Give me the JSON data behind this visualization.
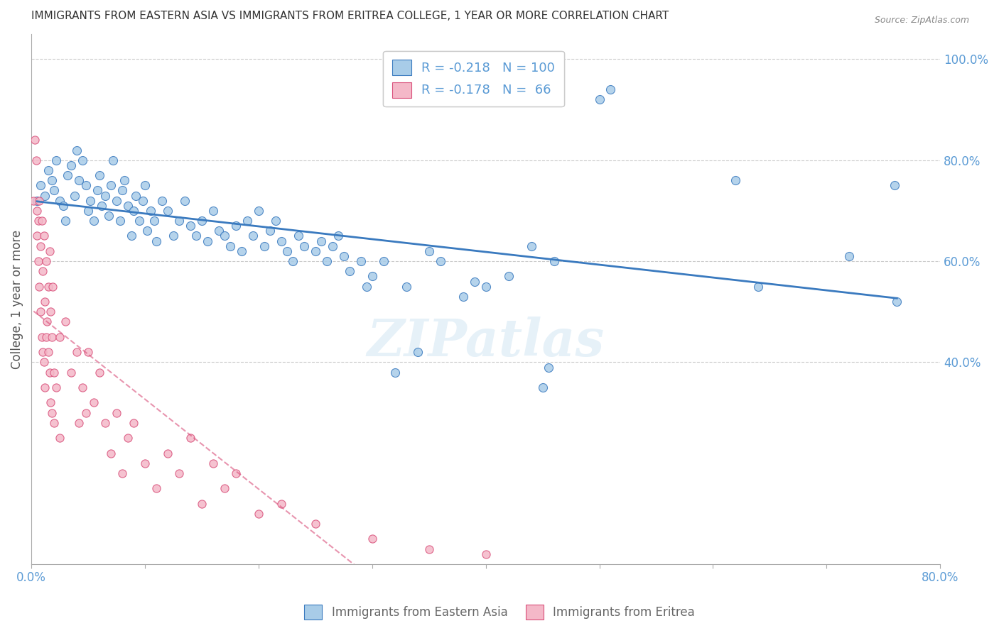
{
  "title": "IMMIGRANTS FROM EASTERN ASIA VS IMMIGRANTS FROM ERITREA COLLEGE, 1 YEAR OR MORE CORRELATION CHART",
  "source": "Source: ZipAtlas.com",
  "xlabel": "",
  "ylabel": "College, 1 year or more",
  "xlim": [
    0.0,
    0.8
  ],
  "ylim": [
    0.0,
    1.05
  ],
  "xticks": [
    0.0,
    0.1,
    0.2,
    0.3,
    0.4,
    0.5,
    0.6,
    0.7,
    0.8
  ],
  "xticklabels": [
    "0.0%",
    "",
    "",
    "",
    "",
    "",
    "",
    "",
    "80.0%"
  ],
  "yticks_right": [
    0.4,
    0.6,
    0.8,
    1.0
  ],
  "yticklabels_right": [
    "40.0%",
    "60.0%",
    "80.0%",
    "100.0%"
  ],
  "R_blue": -0.218,
  "N_blue": 100,
  "R_pink": -0.178,
  "N_pink": 66,
  "blue_color": "#a8cce8",
  "pink_color": "#f4b8c8",
  "blue_line_color": "#3a7abf",
  "pink_line_color": "#d94f7a",
  "axis_label_color": "#5b9bd5",
  "watermark": "ZIPatlas",
  "blue_scatter": [
    [
      0.005,
      0.72
    ],
    [
      0.008,
      0.75
    ],
    [
      0.012,
      0.73
    ],
    [
      0.015,
      0.78
    ],
    [
      0.018,
      0.76
    ],
    [
      0.02,
      0.74
    ],
    [
      0.022,
      0.8
    ],
    [
      0.025,
      0.72
    ],
    [
      0.028,
      0.71
    ],
    [
      0.03,
      0.68
    ],
    [
      0.032,
      0.77
    ],
    [
      0.035,
      0.79
    ],
    [
      0.038,
      0.73
    ],
    [
      0.04,
      0.82
    ],
    [
      0.042,
      0.76
    ],
    [
      0.045,
      0.8
    ],
    [
      0.048,
      0.75
    ],
    [
      0.05,
      0.7
    ],
    [
      0.052,
      0.72
    ],
    [
      0.055,
      0.68
    ],
    [
      0.058,
      0.74
    ],
    [
      0.06,
      0.77
    ],
    [
      0.062,
      0.71
    ],
    [
      0.065,
      0.73
    ],
    [
      0.068,
      0.69
    ],
    [
      0.07,
      0.75
    ],
    [
      0.072,
      0.8
    ],
    [
      0.075,
      0.72
    ],
    [
      0.078,
      0.68
    ],
    [
      0.08,
      0.74
    ],
    [
      0.082,
      0.76
    ],
    [
      0.085,
      0.71
    ],
    [
      0.088,
      0.65
    ],
    [
      0.09,
      0.7
    ],
    [
      0.092,
      0.73
    ],
    [
      0.095,
      0.68
    ],
    [
      0.098,
      0.72
    ],
    [
      0.1,
      0.75
    ],
    [
      0.102,
      0.66
    ],
    [
      0.105,
      0.7
    ],
    [
      0.108,
      0.68
    ],
    [
      0.11,
      0.64
    ],
    [
      0.115,
      0.72
    ],
    [
      0.12,
      0.7
    ],
    [
      0.125,
      0.65
    ],
    [
      0.13,
      0.68
    ],
    [
      0.135,
      0.72
    ],
    [
      0.14,
      0.67
    ],
    [
      0.145,
      0.65
    ],
    [
      0.15,
      0.68
    ],
    [
      0.155,
      0.64
    ],
    [
      0.16,
      0.7
    ],
    [
      0.165,
      0.66
    ],
    [
      0.17,
      0.65
    ],
    [
      0.175,
      0.63
    ],
    [
      0.18,
      0.67
    ],
    [
      0.185,
      0.62
    ],
    [
      0.19,
      0.68
    ],
    [
      0.195,
      0.65
    ],
    [
      0.2,
      0.7
    ],
    [
      0.205,
      0.63
    ],
    [
      0.21,
      0.66
    ],
    [
      0.215,
      0.68
    ],
    [
      0.22,
      0.64
    ],
    [
      0.225,
      0.62
    ],
    [
      0.23,
      0.6
    ],
    [
      0.235,
      0.65
    ],
    [
      0.24,
      0.63
    ],
    [
      0.25,
      0.62
    ],
    [
      0.255,
      0.64
    ],
    [
      0.26,
      0.6
    ],
    [
      0.265,
      0.63
    ],
    [
      0.27,
      0.65
    ],
    [
      0.275,
      0.61
    ],
    [
      0.28,
      0.58
    ],
    [
      0.29,
      0.6
    ],
    [
      0.295,
      0.55
    ],
    [
      0.3,
      0.57
    ],
    [
      0.31,
      0.6
    ],
    [
      0.32,
      0.38
    ],
    [
      0.33,
      0.55
    ],
    [
      0.34,
      0.42
    ],
    [
      0.35,
      0.62
    ],
    [
      0.36,
      0.6
    ],
    [
      0.38,
      0.53
    ],
    [
      0.39,
      0.56
    ],
    [
      0.4,
      0.55
    ],
    [
      0.42,
      0.57
    ],
    [
      0.44,
      0.63
    ],
    [
      0.45,
      0.35
    ],
    [
      0.455,
      0.39
    ],
    [
      0.46,
      0.6
    ],
    [
      0.5,
      0.92
    ],
    [
      0.51,
      0.94
    ],
    [
      0.62,
      0.76
    ],
    [
      0.64,
      0.55
    ],
    [
      0.72,
      0.61
    ],
    [
      0.76,
      0.75
    ],
    [
      0.762,
      0.52
    ]
  ],
  "pink_scatter": [
    [
      0.002,
      0.72
    ],
    [
      0.003,
      0.84
    ],
    [
      0.004,
      0.8
    ],
    [
      0.005,
      0.7
    ],
    [
      0.005,
      0.65
    ],
    [
      0.006,
      0.68
    ],
    [
      0.006,
      0.6
    ],
    [
      0.007,
      0.72
    ],
    [
      0.007,
      0.55
    ],
    [
      0.008,
      0.63
    ],
    [
      0.008,
      0.5
    ],
    [
      0.009,
      0.68
    ],
    [
      0.009,
      0.45
    ],
    [
      0.01,
      0.58
    ],
    [
      0.01,
      0.42
    ],
    [
      0.011,
      0.65
    ],
    [
      0.011,
      0.4
    ],
    [
      0.012,
      0.52
    ],
    [
      0.012,
      0.35
    ],
    [
      0.013,
      0.6
    ],
    [
      0.013,
      0.45
    ],
    [
      0.014,
      0.48
    ],
    [
      0.015,
      0.55
    ],
    [
      0.015,
      0.42
    ],
    [
      0.016,
      0.62
    ],
    [
      0.016,
      0.38
    ],
    [
      0.017,
      0.5
    ],
    [
      0.017,
      0.32
    ],
    [
      0.018,
      0.45
    ],
    [
      0.018,
      0.3
    ],
    [
      0.019,
      0.55
    ],
    [
      0.02,
      0.38
    ],
    [
      0.02,
      0.28
    ],
    [
      0.022,
      0.35
    ],
    [
      0.025,
      0.45
    ],
    [
      0.025,
      0.25
    ],
    [
      0.03,
      0.48
    ],
    [
      0.035,
      0.38
    ],
    [
      0.04,
      0.42
    ],
    [
      0.042,
      0.28
    ],
    [
      0.045,
      0.35
    ],
    [
      0.048,
      0.3
    ],
    [
      0.05,
      0.42
    ],
    [
      0.055,
      0.32
    ],
    [
      0.06,
      0.38
    ],
    [
      0.065,
      0.28
    ],
    [
      0.07,
      0.22
    ],
    [
      0.075,
      0.3
    ],
    [
      0.08,
      0.18
    ],
    [
      0.085,
      0.25
    ],
    [
      0.09,
      0.28
    ],
    [
      0.1,
      0.2
    ],
    [
      0.11,
      0.15
    ],
    [
      0.12,
      0.22
    ],
    [
      0.13,
      0.18
    ],
    [
      0.14,
      0.25
    ],
    [
      0.15,
      0.12
    ],
    [
      0.16,
      0.2
    ],
    [
      0.17,
      0.15
    ],
    [
      0.18,
      0.18
    ],
    [
      0.2,
      0.1
    ],
    [
      0.22,
      0.12
    ],
    [
      0.25,
      0.08
    ],
    [
      0.3,
      0.05
    ],
    [
      0.35,
      0.03
    ],
    [
      0.4,
      0.02
    ]
  ]
}
